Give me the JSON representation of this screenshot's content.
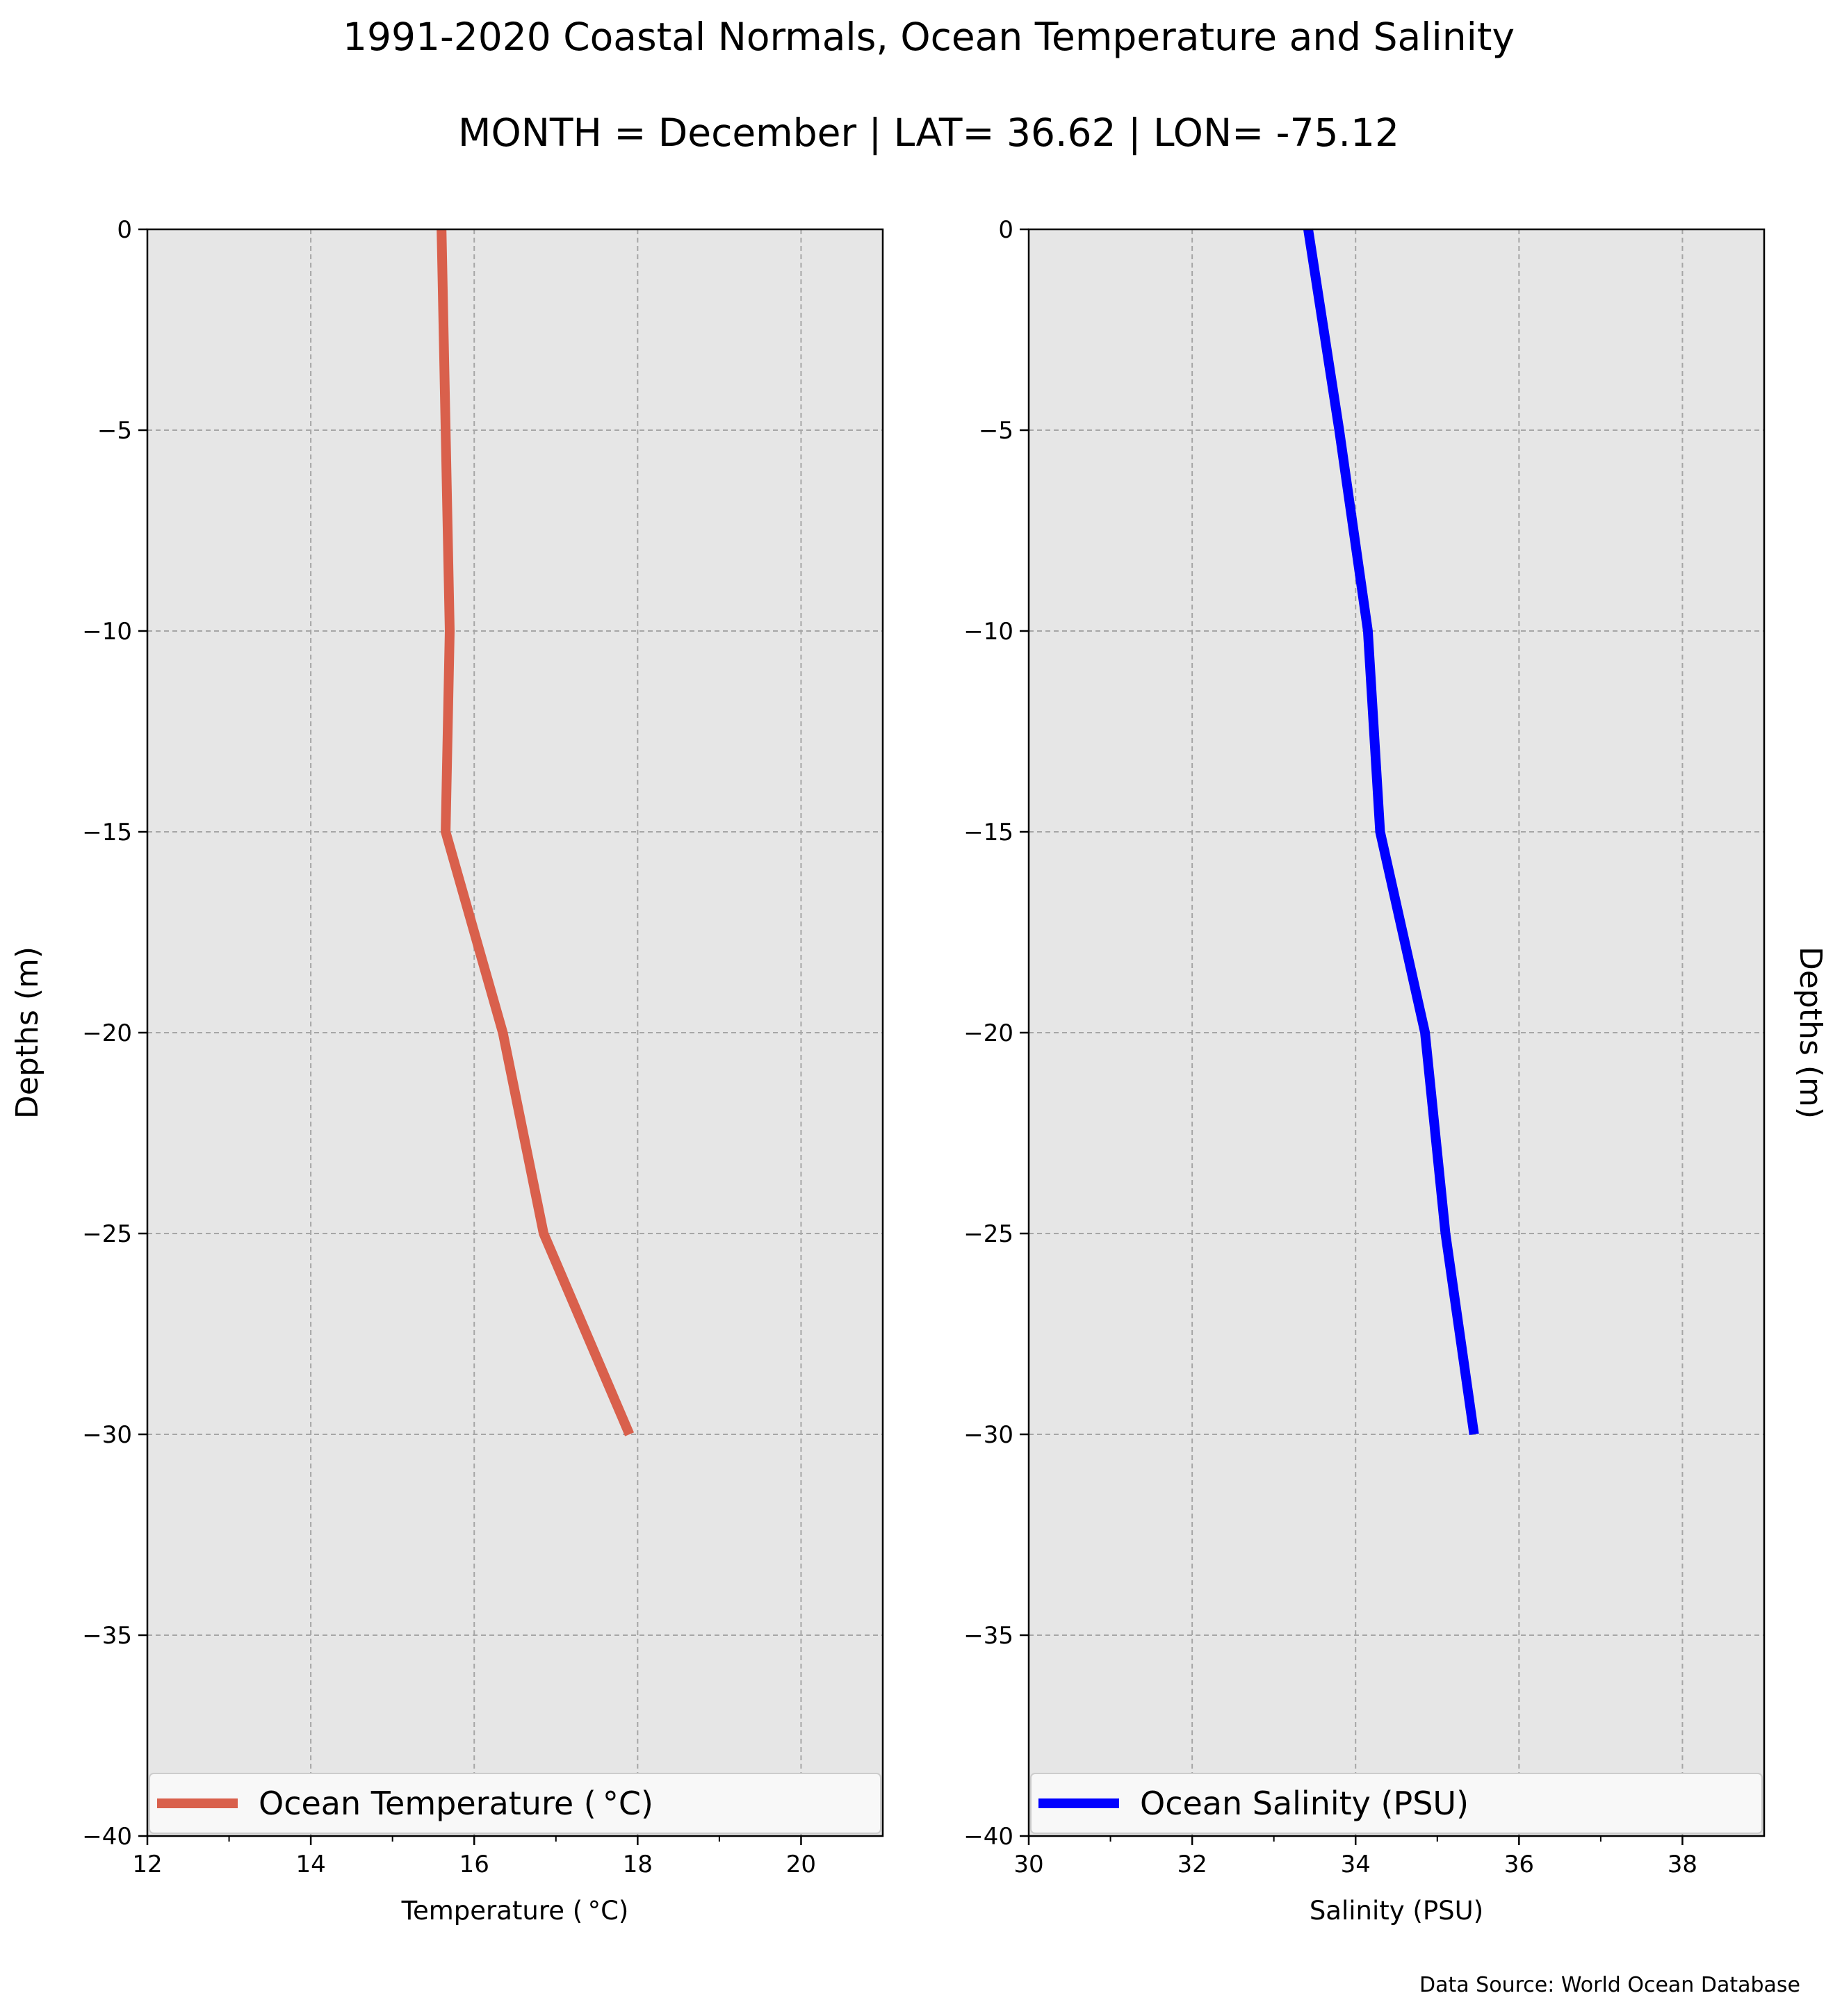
{
  "figure": {
    "title": "1991-2020 Coastal Normals, Ocean Temperature and Salinity",
    "subtitle": "MONTH = December | LAT= 36.62 | LON= -75.12",
    "source_note": "Data Source: World Ocean Database"
  },
  "colors": {
    "panel_background": "#e6e6e6",
    "grid": "#a6a6a6",
    "temperature_line": "#d9604c",
    "salinity_line": "#0000ff",
    "legend_background": "#f8f8f8"
  },
  "chart_data": [
    {
      "type": "line",
      "name": "temperature-panel",
      "xlabel": "Temperature ($^\\circ$C)",
      "xlabel_text": "Temperature ( °C)",
      "ylabel": "Depths (m)",
      "ylabel_side": "left",
      "xlim": [
        12,
        21
      ],
      "ylim": [
        -40,
        0
      ],
      "xticks": [
        12,
        14,
        16,
        18,
        20
      ],
      "xtick_labels": [
        "12",
        "14",
        "16",
        "18",
        "20"
      ],
      "yticks": [
        0,
        -5,
        -10,
        -15,
        -20,
        -25,
        -30,
        -35,
        -40
      ],
      "ytick_labels": [
        "0",
        "−5",
        "−10",
        "−15",
        "−20",
        "−25",
        "−30",
        "−35",
        "−40"
      ],
      "grid": true,
      "legend": "bottom",
      "series": [
        {
          "name": "Ocean Temperature ( °C)",
          "color": "#d9604c",
          "x": [
            15.6,
            15.65,
            15.7,
            15.65,
            16.35,
            16.85,
            17.9
          ],
          "y": [
            0,
            -5,
            -10,
            -15,
            -20,
            -25,
            -30
          ]
        }
      ]
    },
    {
      "type": "line",
      "name": "salinity-panel",
      "xlabel": "Salinity (PSU)",
      "xlabel_text": "Salinity (PSU)",
      "ylabel": "Depths (m)",
      "ylabel_side": "right",
      "xlim": [
        30,
        39
      ],
      "ylim": [
        -40,
        0
      ],
      "xticks": [
        30,
        32,
        34,
        36,
        38
      ],
      "xtick_labels": [
        "30",
        "32",
        "34",
        "36",
        "38"
      ],
      "yticks": [
        0,
        -5,
        -10,
        -15,
        -20,
        -25,
        -30,
        -35,
        -40
      ],
      "ytick_labels": [
        "0",
        "−5",
        "−10",
        "−15",
        "−20",
        "−25",
        "−30",
        "−35",
        "−40"
      ],
      "grid": true,
      "legend": "bottom",
      "series": [
        {
          "name": "Ocean Salinity (PSU)",
          "color": "#0000ff",
          "x": [
            33.42,
            33.8,
            34.15,
            34.3,
            34.85,
            35.1,
            35.45
          ],
          "y": [
            0,
            -5,
            -10,
            -15,
            -20,
            -25,
            -30
          ]
        }
      ]
    }
  ]
}
